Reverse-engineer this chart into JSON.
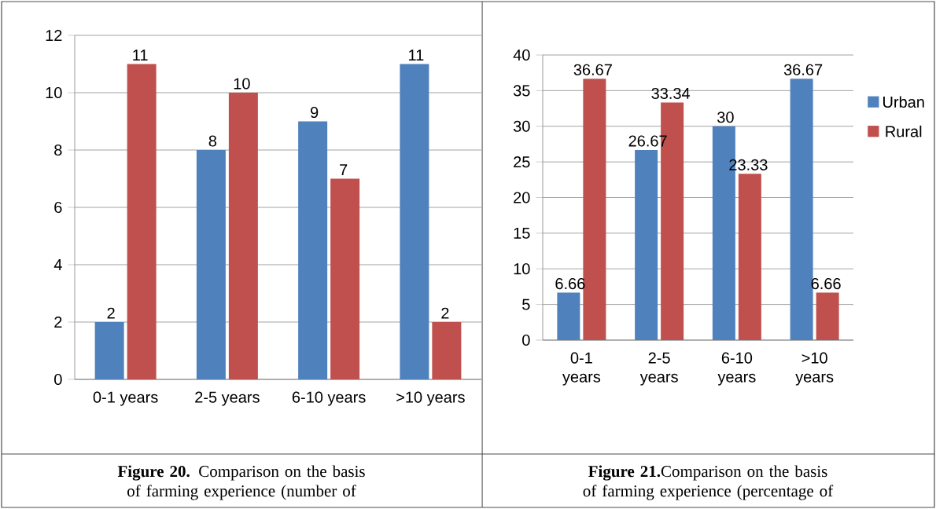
{
  "chart_data": [
    {
      "type": "bar",
      "categories": [
        "0-1 years",
        "2-5 years",
        "6-10 years",
        ">10 years"
      ],
      "series": [
        {
          "color": "#4f81bd",
          "values": [
            2,
            8,
            9,
            11
          ]
        },
        {
          "color": "#c0504d",
          "values": [
            11,
            10,
            7,
            2
          ]
        }
      ],
      "ylim": [
        0,
        12
      ],
      "yticks": [
        0,
        2,
        4,
        6,
        8,
        10,
        12
      ],
      "grid": "y",
      "data_labels": true,
      "legend": false,
      "annotations": [
        "**Figure 20.** Comparison on the basis of farming experience (number of"
      ]
    },
    {
      "type": "bar",
      "categories": [
        "0-1 years",
        "2-5 years",
        "6-10 years",
        ">10 years"
      ],
      "series": [
        {
          "name": "Urban",
          "color": "#4f81bd",
          "values": [
            6.66,
            26.67,
            30,
            36.67
          ]
        },
        {
          "name": "Rural",
          "color": "#c0504d",
          "values": [
            36.67,
            33.34,
            23.33,
            6.66
          ]
        }
      ],
      "ylim": [
        0,
        40
      ],
      "yticks": [
        0,
        5,
        10,
        15,
        20,
        25,
        30,
        35,
        40
      ],
      "grid": "y",
      "data_labels": true,
      "legend": "right",
      "annotations": [
        "**Figure 21.**Comparison on the basis of farming experience (percentage of"
      ]
    }
  ]
}
